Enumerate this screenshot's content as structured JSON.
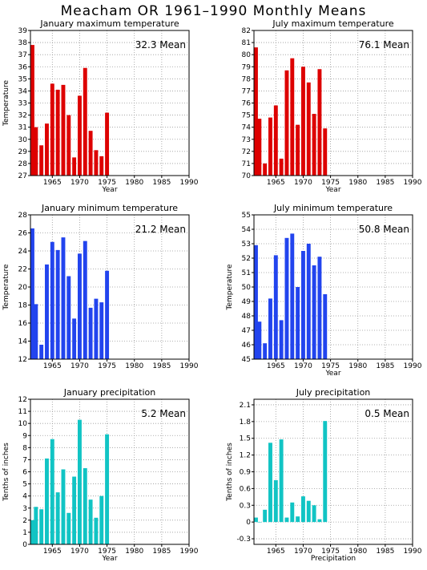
{
  "page": {
    "title": "Meacham OR   1961–1990 Monthly Means"
  },
  "chart_data": [
    {
      "type": "bar",
      "title": "January maximum temperature",
      "ylabel": "Temperature",
      "xlabel": "Year",
      "mean_label": "32.3 Mean",
      "color": "#dd0000",
      "xlim": [
        1961,
        1990
      ],
      "ylim": [
        27,
        39
      ],
      "yticks": [
        27,
        28,
        29,
        30,
        31,
        32,
        33,
        34,
        35,
        36,
        37,
        38,
        39
      ],
      "xticks": [
        1965,
        1970,
        1975,
        1980,
        1985,
        1990
      ],
      "x": [
        1961,
        1962,
        1963,
        1964,
        1965,
        1966,
        1967,
        1968,
        1969,
        1970,
        1971,
        1972,
        1973,
        1974,
        1975
      ],
      "values": [
        37.8,
        31.0,
        29.5,
        31.3,
        34.6,
        34.1,
        34.5,
        32.0,
        28.5,
        33.6,
        35.9,
        30.7,
        29.1,
        28.6,
        32.2
      ]
    },
    {
      "type": "bar",
      "title": "July maximum temperature",
      "ylabel": "",
      "xlabel": "Year",
      "mean_label": "76.1 Mean",
      "color": "#dd0000",
      "xlim": [
        1961,
        1990
      ],
      "ylim": [
        70,
        82
      ],
      "yticks": [
        70,
        71,
        72,
        73,
        74,
        75,
        76,
        77,
        78,
        79,
        80,
        81,
        82
      ],
      "xticks": [
        1965,
        1970,
        1975,
        1980,
        1985,
        1990
      ],
      "x": [
        1961,
        1962,
        1963,
        1964,
        1965,
        1966,
        1967,
        1968,
        1969,
        1970,
        1971,
        1972,
        1973,
        1974
      ],
      "values": [
        80.6,
        74.7,
        71.0,
        74.8,
        75.8,
        71.4,
        78.7,
        79.7,
        74.2,
        79.0,
        77.7,
        75.1,
        78.8,
        73.9
      ]
    },
    {
      "type": "bar",
      "title": "January minimum temperature",
      "ylabel": "Temperature",
      "xlabel": "",
      "mean_label": "21.2 Mean",
      "color": "#2244ee",
      "xlim": [
        1961,
        1990
      ],
      "ylim": [
        12,
        28
      ],
      "yticks": [
        12,
        14,
        16,
        18,
        20,
        22,
        24,
        26,
        28
      ],
      "xticks": [
        1965,
        1970,
        1975,
        1980,
        1985,
        1990
      ],
      "x": [
        1961,
        1962,
        1963,
        1964,
        1965,
        1966,
        1967,
        1968,
        1969,
        1970,
        1971,
        1972,
        1973,
        1974,
        1975
      ],
      "values": [
        26.5,
        18.1,
        13.6,
        22.5,
        25.0,
        24.1,
        25.5,
        21.2,
        16.5,
        23.7,
        25.1,
        17.7,
        18.7,
        18.3,
        21.8
      ]
    },
    {
      "type": "bar",
      "title": "July minimum temperature",
      "ylabel": "Temperature",
      "xlabel": "Year",
      "mean_label": "50.8 Mean",
      "color": "#2244ee",
      "xlim": [
        1961,
        1990
      ],
      "ylim": [
        45,
        55
      ],
      "yticks": [
        45,
        46,
        47,
        48,
        49,
        50,
        51,
        52,
        53,
        54,
        55
      ],
      "xticks": [
        1965,
        1970,
        1975,
        1980,
        1985,
        1990
      ],
      "x": [
        1961,
        1962,
        1963,
        1964,
        1965,
        1966,
        1967,
        1968,
        1969,
        1970,
        1971,
        1972,
        1973,
        1974
      ],
      "values": [
        52.9,
        47.6,
        46.1,
        49.2,
        52.2,
        47.7,
        53.4,
        53.7,
        50.0,
        52.5,
        53.0,
        51.5,
        52.1,
        49.5
      ]
    },
    {
      "type": "bar",
      "title": "January precipitation",
      "ylabel": "Tenths of inches",
      "xlabel": "Year",
      "mean_label": "5.2 Mean",
      "color": "#11c4c4",
      "xlim": [
        1961,
        1990
      ],
      "ylim": [
        0,
        12
      ],
      "yticks": [
        0,
        1,
        2,
        3,
        4,
        5,
        6,
        7,
        8,
        9,
        10,
        11,
        12
      ],
      "xticks": [
        1965,
        1970,
        1975,
        1980,
        1985,
        1990
      ],
      "x": [
        1961,
        1962,
        1963,
        1964,
        1965,
        1966,
        1967,
        1968,
        1969,
        1970,
        1971,
        1972,
        1973,
        1974,
        1975
      ],
      "values": [
        2.0,
        3.1,
        2.9,
        7.1,
        8.7,
        4.3,
        6.2,
        2.6,
        5.6,
        10.3,
        6.3,
        3.7,
        2.2,
        4.0,
        9.1
      ]
    },
    {
      "type": "bar",
      "title": "July precipitation",
      "ylabel": "Tenths of inches",
      "xlabel": "Precipitation",
      "mean_label": "0.5 Mean",
      "color": "#11c4c4",
      "xlim": [
        1961,
        1990
      ],
      "ylim": [
        -0.4,
        2.2
      ],
      "yticks": [
        -0.3,
        0,
        0.3,
        0.6,
        0.9,
        1.2,
        1.5,
        1.8,
        2.1
      ],
      "xticks": [
        1965,
        1970,
        1975,
        1980,
        1985,
        1990
      ],
      "x": [
        1961,
        1962,
        1963,
        1964,
        1965,
        1966,
        1967,
        1968,
        1969,
        1970,
        1971,
        1972,
        1973,
        1974
      ],
      "values": [
        0.08,
        0.0,
        0.22,
        1.42,
        0.75,
        1.48,
        0.08,
        0.35,
        0.1,
        0.46,
        0.38,
        0.3,
        0.05,
        1.81
      ]
    }
  ]
}
